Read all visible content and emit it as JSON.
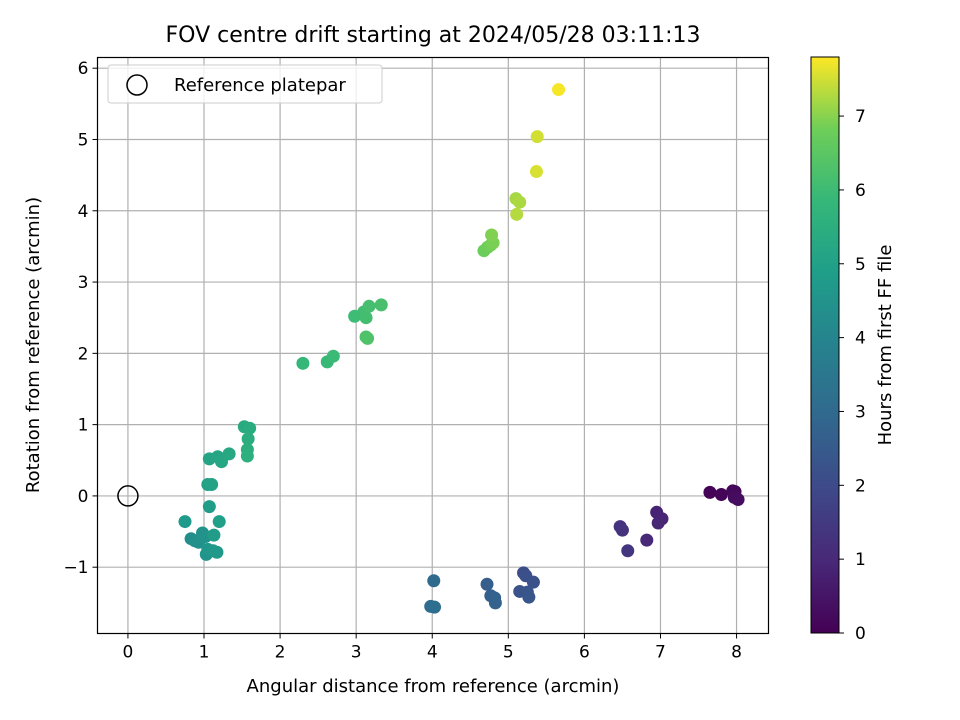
{
  "chart_data": {
    "type": "scatter",
    "title": "FOV centre drift starting at 2024/05/28 03:11:13",
    "xlabel": "Angular distance from reference (arcmin)",
    "ylabel": "Rotation from reference (arcmin)",
    "xlim": [
      -0.4,
      8.42
    ],
    "ylim": [
      -1.93,
      6.15
    ],
    "xticks": [
      0,
      1,
      2,
      3,
      4,
      5,
      6,
      7,
      8
    ],
    "yticks": [
      -1,
      0,
      1,
      2,
      3,
      4,
      5,
      6
    ],
    "grid": true,
    "legend": {
      "placement": "top-left",
      "entries": [
        "Reference platepar"
      ]
    },
    "reference_point": {
      "x": 0,
      "y": 0,
      "label": "Reference platepar"
    },
    "colorbar": {
      "label": "Hours from first FF file",
      "colormap": "viridis",
      "min": 0,
      "max": 7.8,
      "ticks": [
        0,
        1,
        2,
        3,
        4,
        5,
        6,
        7
      ]
    },
    "points": [
      {
        "x": 7.65,
        "y": 0.05,
        "hours": 0.05
      },
      {
        "x": 7.8,
        "y": 0.02,
        "hours": 0.1
      },
      {
        "x": 7.95,
        "y": 0.07,
        "hours": 0.15
      },
      {
        "x": 7.98,
        "y": 0.06,
        "hours": 0.2
      },
      {
        "x": 7.97,
        "y": -0.02,
        "hours": 0.25
      },
      {
        "x": 8.02,
        "y": -0.05,
        "hours": 0.3
      },
      {
        "x": 6.95,
        "y": -0.23,
        "hours": 0.85
      },
      {
        "x": 7.02,
        "y": -0.32,
        "hours": 0.9
      },
      {
        "x": 6.97,
        "y": -0.38,
        "hours": 0.95
      },
      {
        "x": 6.82,
        "y": -0.62,
        "hours": 1.0
      },
      {
        "x": 6.47,
        "y": -0.43,
        "hours": 1.25
      },
      {
        "x": 6.5,
        "y": -0.48,
        "hours": 1.3
      },
      {
        "x": 6.57,
        "y": -0.77,
        "hours": 1.35
      },
      {
        "x": 5.2,
        "y": -1.08,
        "hours": 2.1
      },
      {
        "x": 5.23,
        "y": -1.12,
        "hours": 2.15
      },
      {
        "x": 5.33,
        "y": -1.21,
        "hours": 2.2
      },
      {
        "x": 5.15,
        "y": -1.34,
        "hours": 2.25
      },
      {
        "x": 5.25,
        "y": -1.35,
        "hours": 2.3
      },
      {
        "x": 5.27,
        "y": -1.42,
        "hours": 2.35
      },
      {
        "x": 4.72,
        "y": -1.24,
        "hours": 2.6
      },
      {
        "x": 4.77,
        "y": -1.4,
        "hours": 2.65
      },
      {
        "x": 4.82,
        "y": -1.43,
        "hours": 2.7
      },
      {
        "x": 4.83,
        "y": -1.5,
        "hours": 2.75
      },
      {
        "x": 4.02,
        "y": -1.19,
        "hours": 3.05
      },
      {
        "x": 3.98,
        "y": -1.55,
        "hours": 3.1
      },
      {
        "x": 4.03,
        "y": -1.56,
        "hours": 3.15
      },
      {
        "x": 0.83,
        "y": -0.6,
        "hours": 4.3
      },
      {
        "x": 0.88,
        "y": -0.63,
        "hours": 4.35
      },
      {
        "x": 0.93,
        "y": -0.65,
        "hours": 4.4
      },
      {
        "x": 0.98,
        "y": -0.52,
        "hours": 4.45
      },
      {
        "x": 1.02,
        "y": -0.57,
        "hours": 4.5
      },
      {
        "x": 1.03,
        "y": -0.82,
        "hours": 4.55
      },
      {
        "x": 1.05,
        "y": -0.75,
        "hours": 4.6
      },
      {
        "x": 1.12,
        "y": -0.77,
        "hours": 4.65
      },
      {
        "x": 1.17,
        "y": -0.79,
        "hours": 4.7
      },
      {
        "x": 0.75,
        "y": -0.36,
        "hours": 4.75
      },
      {
        "x": 1.13,
        "y": -0.55,
        "hours": 4.8
      },
      {
        "x": 1.07,
        "y": -0.15,
        "hours": 4.85
      },
      {
        "x": 1.2,
        "y": -0.36,
        "hours": 4.9
      },
      {
        "x": 1.05,
        "y": 0.16,
        "hours": 5.0
      },
      {
        "x": 1.1,
        "y": 0.16,
        "hours": 5.05
      },
      {
        "x": 1.07,
        "y": 0.52,
        "hours": 5.1
      },
      {
        "x": 1.18,
        "y": 0.55,
        "hours": 5.15
      },
      {
        "x": 1.23,
        "y": 0.48,
        "hours": 5.2
      },
      {
        "x": 1.33,
        "y": 0.59,
        "hours": 5.25
      },
      {
        "x": 1.53,
        "y": 0.97,
        "hours": 5.35
      },
      {
        "x": 1.6,
        "y": 0.95,
        "hours": 5.4
      },
      {
        "x": 1.58,
        "y": 0.8,
        "hours": 5.45
      },
      {
        "x": 1.57,
        "y": 0.65,
        "hours": 5.5
      },
      {
        "x": 1.57,
        "y": 0.56,
        "hours": 5.55
      },
      {
        "x": 2.3,
        "y": 1.86,
        "hours": 5.85
      },
      {
        "x": 2.62,
        "y": 1.88,
        "hours": 5.9
      },
      {
        "x": 2.7,
        "y": 1.96,
        "hours": 5.95
      },
      {
        "x": 2.98,
        "y": 2.52,
        "hours": 6.0
      },
      {
        "x": 3.1,
        "y": 2.58,
        "hours": 6.05
      },
      {
        "x": 3.13,
        "y": 2.5,
        "hours": 6.1
      },
      {
        "x": 3.17,
        "y": 2.66,
        "hours": 6.15
      },
      {
        "x": 3.33,
        "y": 2.68,
        "hours": 6.2
      },
      {
        "x": 3.13,
        "y": 2.23,
        "hours": 6.25
      },
      {
        "x": 3.15,
        "y": 2.21,
        "hours": 6.3
      },
      {
        "x": 4.68,
        "y": 3.44,
        "hours": 6.75
      },
      {
        "x": 4.73,
        "y": 3.49,
        "hours": 6.8
      },
      {
        "x": 4.77,
        "y": 3.52,
        "hours": 6.85
      },
      {
        "x": 4.8,
        "y": 3.55,
        "hours": 6.9
      },
      {
        "x": 4.78,
        "y": 3.66,
        "hours": 6.95
      },
      {
        "x": 5.1,
        "y": 4.17,
        "hours": 7.2
      },
      {
        "x": 5.15,
        "y": 4.12,
        "hours": 7.25
      },
      {
        "x": 5.11,
        "y": 3.95,
        "hours": 7.3
      },
      {
        "x": 5.38,
        "y": 5.04,
        "hours": 7.5
      },
      {
        "x": 5.37,
        "y": 4.55,
        "hours": 7.55
      },
      {
        "x": 5.66,
        "y": 5.7,
        "hours": 7.75
      }
    ]
  }
}
